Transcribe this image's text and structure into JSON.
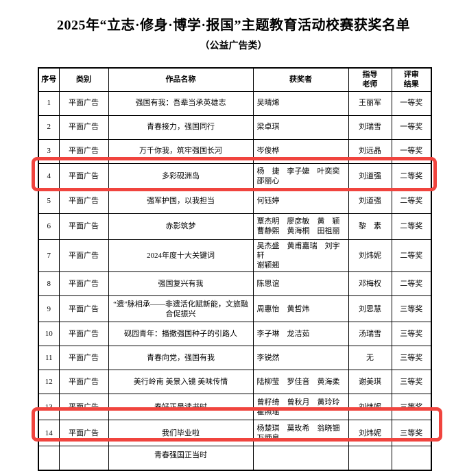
{
  "page": {
    "title": "2025年“立志·修身·博学·报国”主题教育活动校赛获奖名单",
    "subtitle": "（公益广告类）"
  },
  "highlight_color": "#f0443e",
  "table": {
    "headers": [
      "序号",
      "类别",
      "作品名称",
      "获奖者",
      "指导\n老师",
      "评审\n结果"
    ],
    "rows": [
      {
        "no": "1",
        "category": "平面广告",
        "title": "强国有我：吾辈当承英雄志",
        "winners": [
          "吴晴烯"
        ],
        "advisor": "王丽军",
        "result": "一等奖",
        "highlight": false
      },
      {
        "no": "2",
        "category": "平面广告",
        "title": "青春接力，强国同行",
        "winners": [
          "梁卓琪"
        ],
        "advisor": "刘瑞雪",
        "result": "一等奖",
        "highlight": false
      },
      {
        "no": "3",
        "category": "平面广告",
        "title": "万千你我，筑牢强国长河",
        "winners": [
          "岑俊桦"
        ],
        "advisor": "刘远晶",
        "result": "一等奖",
        "highlight": false
      },
      {
        "no": "4",
        "category": "平面广告",
        "title": "多彩砚洲岛",
        "winners": [
          "杨　捷　李子婕　叶奕奕",
          "邵丽心"
        ],
        "advisor": "刘道强",
        "result": "二等奖",
        "highlight": true
      },
      {
        "no": "5",
        "category": "平面广告",
        "title": "强军护国，以我担当",
        "winners": [
          "何钰婷"
        ],
        "advisor": "刘道强",
        "result": "二等奖",
        "highlight": false
      },
      {
        "no": "6",
        "category": "平面广告",
        "title": "赤影筑梦",
        "winners": [
          "覃杰明　廖彦敏　黄　颖",
          "曹静熙　黄海桐　田祖丽"
        ],
        "advisor": "黎　素",
        "result": "二等奖",
        "highlight": false
      },
      {
        "no": "7",
        "category": "平面广告",
        "title": "2024年度十大关键词",
        "winners": [
          "吴杰盛　黄甫嘉瑞　刘宇轩",
          "谢颖翘"
        ],
        "advisor": "刘炜妮",
        "result": "二等奖",
        "highlight": false
      },
      {
        "no": "8",
        "category": "平面广告",
        "title": "强国复兴有我",
        "winners": [
          "陈思谊"
        ],
        "advisor": "邓梅权",
        "result": "二等奖",
        "highlight": false
      },
      {
        "no": "9",
        "category": "平面广告",
        "title": "“遗”脉相承——非遗活化赋新能，文旅融合促振兴",
        "winners": [
          "周惠怡　黄哲炜"
        ],
        "advisor": "刘思慧",
        "result": "三等奖",
        "highlight": false
      },
      {
        "no": "10",
        "category": "平面广告",
        "title": "砚园青年：播撒强国种子的引路人",
        "winners": [
          "李子琳　龙洁茹"
        ],
        "advisor": "汤瑞雪",
        "result": "三等奖",
        "highlight": false
      },
      {
        "no": "11",
        "category": "平面广告",
        "title": "青春向党，强国有我",
        "winners": [
          "李锐然"
        ],
        "advisor": "无",
        "result": "三等奖",
        "highlight": false
      },
      {
        "no": "12",
        "category": "平面广告",
        "title": "美行岭南 美景入镜 美味传情",
        "winners": [
          "陆柳莹　罗佳音　黄海柔"
        ],
        "advisor": "谢美琪",
        "result": "三等奖",
        "highlight": false
      },
      {
        "no": "13",
        "category": "平面广告",
        "title": "春好正是读书时",
        "winners": [
          "曾籽绮　曾秋月　黄玲玲",
          "瞿照瑶"
        ],
        "advisor": "刘炜妮",
        "result": "三等奖",
        "highlight": false
      },
      {
        "no": "14",
        "category": "平面广告",
        "title": "我们毕业啦",
        "winners": [
          "杨楚琪　莫玫希　翁晓钿",
          "万炳良"
        ],
        "advisor": "刘炜妮",
        "result": "三等奖",
        "highlight": true
      }
    ],
    "partial_row": {
      "title_fragment": "青春强国正当时"
    }
  }
}
